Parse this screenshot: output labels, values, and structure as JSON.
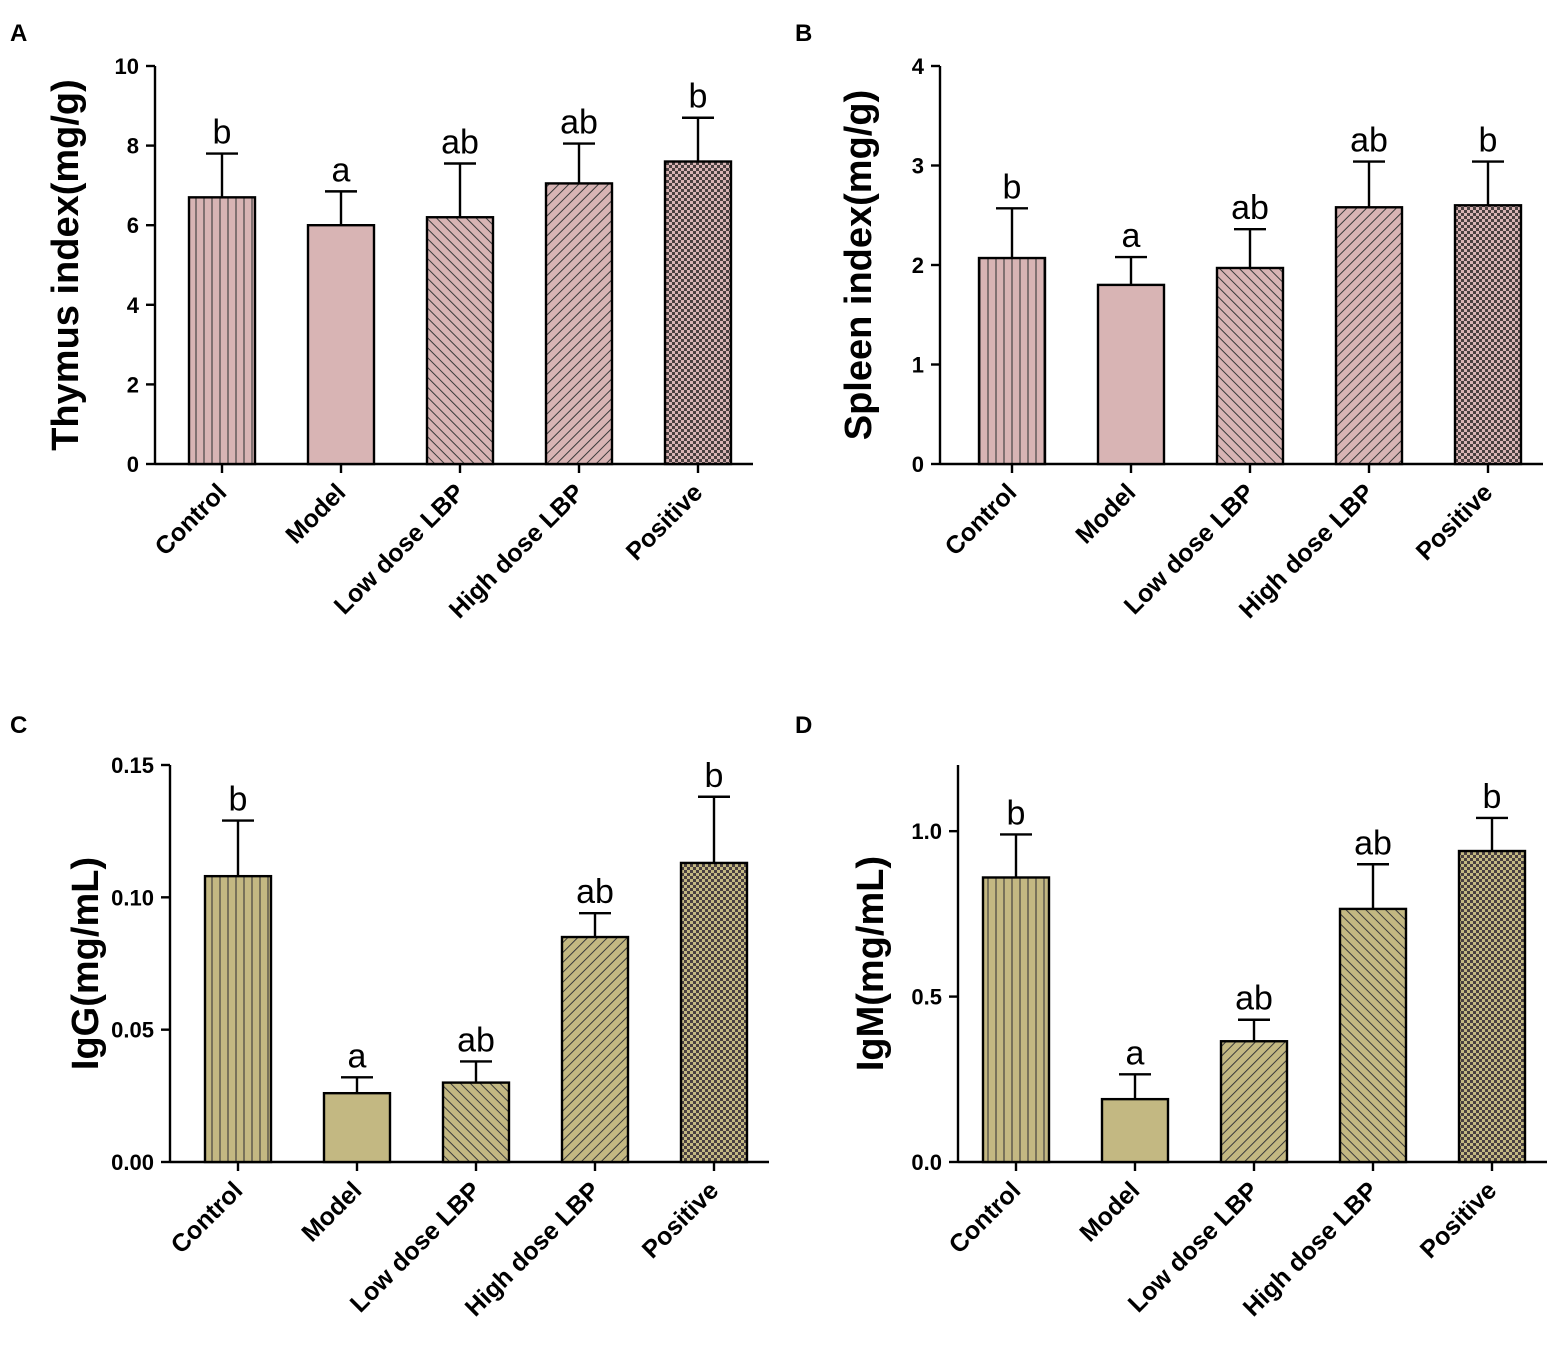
{
  "figure": {
    "panel_letters": [
      "A",
      "B",
      "C",
      "D"
    ]
  },
  "colors": {
    "pink_fill": "#d8b4b4",
    "olive_fill": "#c3b882",
    "stroke": "#000000"
  },
  "chart_data": [
    {
      "panel": "A",
      "type": "bar",
      "categories": [
        "Control",
        "Model",
        "Low dose LBP",
        "High dose LBP",
        "Positive"
      ],
      "values": [
        6.7,
        6.0,
        6.2,
        7.05,
        7.6
      ],
      "errors": [
        1.1,
        0.85,
        1.35,
        1.0,
        1.1
      ],
      "significance": [
        "b",
        "a",
        "ab",
        "ab",
        "b"
      ],
      "patterns": [
        "vertical",
        "solid",
        "diag-back",
        "diag-fwd",
        "checker"
      ],
      "ylabel": "Thymus index(mg/g)",
      "xlabel": "",
      "ylim": [
        0,
        10
      ],
      "yticks": [
        0,
        2,
        4,
        6,
        8,
        10
      ],
      "ytick_labels": [
        "0",
        "2",
        "4",
        "6",
        "8",
        "10"
      ],
      "fill": "pink"
    },
    {
      "panel": "B",
      "type": "bar",
      "categories": [
        "Control",
        "Model",
        "Low dose LBP",
        "High dose LBP",
        "Positive"
      ],
      "values": [
        2.07,
        1.8,
        1.97,
        2.58,
        2.6
      ],
      "errors": [
        0.5,
        0.28,
        0.39,
        0.46,
        0.44
      ],
      "significance": [
        "b",
        "a",
        "ab",
        "ab",
        "b"
      ],
      "patterns": [
        "vertical",
        "solid",
        "diag-back",
        "diag-fwd",
        "checker"
      ],
      "ylabel": "Spleen index(mg/g)",
      "xlabel": "",
      "ylim": [
        0,
        4
      ],
      "yticks": [
        0,
        1,
        2,
        3,
        4
      ],
      "ytick_labels": [
        "0",
        "1",
        "2",
        "3",
        "4"
      ],
      "fill": "pink"
    },
    {
      "panel": "C",
      "type": "bar",
      "categories": [
        "Control",
        "Model",
        "Low dose LBP",
        "High dose LBP",
        "Positive"
      ],
      "values": [
        0.108,
        0.026,
        0.03,
        0.085,
        0.113
      ],
      "errors": [
        0.021,
        0.006,
        0.008,
        0.009,
        0.025
      ],
      "significance": [
        "b",
        "a",
        "ab",
        "ab",
        "b"
      ],
      "patterns": [
        "vertical",
        "solid",
        "diag-back",
        "diag-fwd",
        "checker"
      ],
      "ylabel": "IgG(mg/mL)",
      "xlabel": "",
      "ylim": [
        0,
        0.15
      ],
      "yticks": [
        0,
        0.05,
        0.1,
        0.15
      ],
      "ytick_labels": [
        "0.00",
        "0.05",
        "0.10",
        "0.15"
      ],
      "fill": "olive"
    },
    {
      "panel": "D",
      "type": "bar",
      "categories": [
        "Control",
        "Model",
        "Low dose LBP",
        "High dose LBP",
        "Positive"
      ],
      "values": [
        0.86,
        0.19,
        0.365,
        0.765,
        0.94
      ],
      "errors": [
        0.13,
        0.075,
        0.065,
        0.135,
        0.1
      ],
      "significance": [
        "b",
        "a",
        "ab",
        "ab",
        "b"
      ],
      "patterns": [
        "vertical",
        "solid",
        "diag-fwd",
        "diag-back",
        "checker"
      ],
      "ylabel": "IgM(mg/mL)",
      "xlabel": "",
      "ylim": [
        0,
        1.2
      ],
      "yticks": [
        0,
        0.5,
        1.0
      ],
      "ytick_labels": [
        "0.0",
        "0.5",
        "1.0"
      ],
      "fill": "olive"
    }
  ]
}
